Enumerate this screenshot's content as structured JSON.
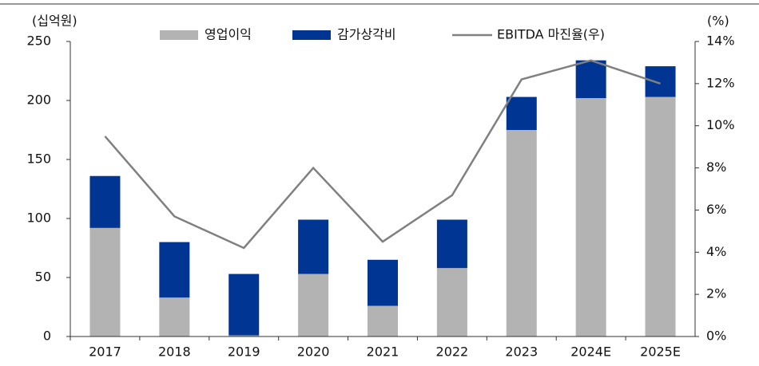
{
  "chart_data": {
    "type": "bar",
    "ylabel": "(십억원)",
    "y2label": "(%)",
    "categories": [
      "2017",
      "2018",
      "2019",
      "2020",
      "2021",
      "2022",
      "2023",
      "2024E",
      "2025E"
    ],
    "series": [
      {
        "name": "영업이익",
        "color": "#b3b3b3",
        "type": "bar",
        "values": [
          92,
          33,
          1,
          53,
          26,
          58,
          175,
          202,
          203
        ]
      },
      {
        "name": "감가상각비",
        "color": "#003594",
        "type": "bar",
        "values": [
          44,
          47,
          52,
          46,
          39,
          41,
          28,
          32,
          26
        ]
      },
      {
        "name": "EBITDA 마진율(우)",
        "color": "#808080",
        "type": "line",
        "axis": "y2",
        "values": [
          9.5,
          5.7,
          4.2,
          8.0,
          4.5,
          6.7,
          12.2,
          13.1,
          12.0
        ]
      }
    ],
    "ylim": [
      0,
      250
    ],
    "yticks": [
      0,
      50,
      100,
      150,
      200,
      250
    ],
    "y2lim": [
      0,
      14
    ],
    "y2ticks": [
      {
        "value": 0,
        "label": "0%"
      },
      {
        "value": 2,
        "label": "2%"
      },
      {
        "value": 4,
        "label": "4%"
      },
      {
        "value": 6,
        "label": "6%"
      },
      {
        "value": 8,
        "label": "8%"
      },
      {
        "value": 10,
        "label": "10%"
      },
      {
        "value": 12,
        "label": "12%"
      },
      {
        "value": 14,
        "label": "14%"
      }
    ],
    "stacked": true,
    "legend": "top"
  }
}
